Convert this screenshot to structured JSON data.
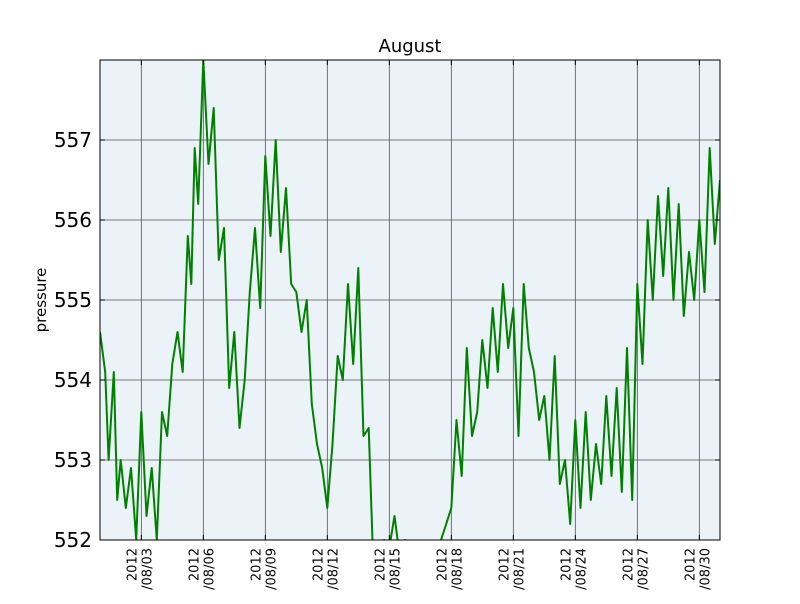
{
  "chart_data": {
    "type": "line",
    "title": "August",
    "xlabel": "",
    "ylabel": "pressure",
    "ylim": [
      552,
      558
    ],
    "xlim": [
      "2012-08-01",
      "2012-08-31"
    ],
    "grid": true,
    "colors": {
      "line": "#008000",
      "plot_bg": "#ebf2f8",
      "grid": "#555555",
      "axes": "#000000"
    },
    "y_ticks": [
      {
        "value": 552,
        "label": "552"
      },
      {
        "value": 553,
        "label": "553"
      },
      {
        "value": 554,
        "label": "554"
      },
      {
        "value": 555,
        "label": "555"
      },
      {
        "value": 556,
        "label": "556"
      },
      {
        "value": 557,
        "label": "557"
      }
    ],
    "x_ticks": [
      {
        "date": "2012-08-03",
        "label1": "2012",
        "label2": "/08/03"
      },
      {
        "date": "2012-08-06",
        "label1": "2012",
        "label2": "/08/06"
      },
      {
        "date": "2012-08-09",
        "label1": "2012",
        "label2": "/08/09"
      },
      {
        "date": "2012-08-12",
        "label1": "2012",
        "label2": "/08/12"
      },
      {
        "date": "2012-08-15",
        "label1": "2012",
        "label2": "/08/15"
      },
      {
        "date": "2012-08-18",
        "label1": "2012",
        "label2": "/08/18"
      },
      {
        "date": "2012-08-21",
        "label1": "2012",
        "label2": "/08/21"
      },
      {
        "date": "2012-08-24",
        "label1": "2012",
        "label2": "/08/24"
      },
      {
        "date": "2012-08-27",
        "label1": "2012",
        "label2": "/08/27"
      },
      {
        "date": "2012-08-30",
        "label1": "2012",
        "label2": "/08/30"
      }
    ],
    "series": [
      {
        "x": [
          "2012-08-01 00:00",
          "2012-08-01 06:00",
          "2012-08-01 10:00",
          "2012-08-01 16:00",
          "2012-08-01 20:00",
          "2012-08-02 00:00",
          "2012-08-02 06:00",
          "2012-08-02 12:00",
          "2012-08-02 18:00",
          "2012-08-03 00:00",
          "2012-08-03 06:00",
          "2012-08-03 12:00",
          "2012-08-03 18:00",
          "2012-08-04 00:00",
          "2012-08-04 06:00",
          "2012-08-04 12:00",
          "2012-08-04 18:00",
          "2012-08-05 00:00",
          "2012-08-05 06:00",
          "2012-08-05 10:00",
          "2012-08-05 14:00",
          "2012-08-05 18:00",
          "2012-08-06 00:00",
          "2012-08-06 06:00",
          "2012-08-06 12:00",
          "2012-08-06 18:00",
          "2012-08-07 00:00",
          "2012-08-07 06:00",
          "2012-08-07 12:00",
          "2012-08-07 18:00",
          "2012-08-08 00:00",
          "2012-08-08 06:00",
          "2012-08-08 12:00",
          "2012-08-08 18:00",
          "2012-08-09 00:00",
          "2012-08-09 06:00",
          "2012-08-09 12:00",
          "2012-08-09 18:00",
          "2012-08-10 00:00",
          "2012-08-10 06:00",
          "2012-08-10 12:00",
          "2012-08-10 18:00",
          "2012-08-11 00:00",
          "2012-08-11 06:00",
          "2012-08-11 12:00",
          "2012-08-11 18:00",
          "2012-08-12 00:00",
          "2012-08-12 06:00",
          "2012-08-12 12:00",
          "2012-08-12 18:00",
          "2012-08-13 00:00",
          "2012-08-13 06:00",
          "2012-08-13 12:00",
          "2012-08-13 18:00",
          "2012-08-14 00:00",
          "2012-08-14 06:00",
          "2012-08-14 12:00",
          "2012-08-14 18:00",
          "2012-08-15 00:00",
          "2012-08-15 06:00",
          "2012-08-15 12:00",
          "2012-08-15 18:00",
          "2012-08-16 00:00",
          "2012-08-16 12:00",
          "2012-08-17 00:00",
          "2012-08-17 12:00",
          "2012-08-17 18:00",
          "2012-08-18 00:00",
          "2012-08-18 06:00",
          "2012-08-18 12:00",
          "2012-08-18 18:00",
          "2012-08-19 00:00",
          "2012-08-19 06:00",
          "2012-08-19 12:00",
          "2012-08-19 18:00",
          "2012-08-20 00:00",
          "2012-08-20 06:00",
          "2012-08-20 12:00",
          "2012-08-20 18:00",
          "2012-08-21 00:00",
          "2012-08-21 06:00",
          "2012-08-21 12:00",
          "2012-08-21 18:00",
          "2012-08-22 00:00",
          "2012-08-22 06:00",
          "2012-08-22 12:00",
          "2012-08-22 18:00",
          "2012-08-23 00:00",
          "2012-08-23 06:00",
          "2012-08-23 12:00",
          "2012-08-23 18:00",
          "2012-08-24 00:00",
          "2012-08-24 06:00",
          "2012-08-24 12:00",
          "2012-08-24 18:00",
          "2012-08-25 00:00",
          "2012-08-25 06:00",
          "2012-08-25 12:00",
          "2012-08-25 18:00",
          "2012-08-26 00:00",
          "2012-08-26 06:00",
          "2012-08-26 12:00",
          "2012-08-26 18:00",
          "2012-08-27 00:00",
          "2012-08-27 06:00",
          "2012-08-27 12:00",
          "2012-08-27 18:00",
          "2012-08-28 00:00",
          "2012-08-28 06:00",
          "2012-08-28 12:00",
          "2012-08-28 18:00",
          "2012-08-29 00:00",
          "2012-08-29 06:00",
          "2012-08-29 12:00",
          "2012-08-29 18:00",
          "2012-08-30 00:00",
          "2012-08-30 06:00",
          "2012-08-30 12:00",
          "2012-08-30 18:00",
          "2012-08-31 00:00"
        ],
        "y": [
          554.6,
          554.1,
          553.0,
          554.1,
          552.5,
          553.0,
          552.4,
          552.9,
          552.0,
          553.6,
          552.3,
          552.9,
          552.0,
          553.6,
          553.3,
          554.2,
          554.6,
          554.1,
          555.8,
          555.2,
          556.9,
          556.2,
          558.0,
          556.7,
          557.4,
          555.5,
          555.9,
          553.9,
          554.6,
          553.4,
          554.0,
          555.1,
          555.9,
          554.9,
          556.8,
          555.8,
          557.0,
          555.6,
          556.4,
          555.2,
          555.1,
          554.6,
          555.0,
          553.7,
          553.2,
          552.9,
          552.4,
          553.2,
          554.3,
          554.0,
          555.2,
          554.2,
          555.4,
          553.3,
          553.4,
          551.5,
          551.8,
          552.0,
          551.9,
          552.3,
          551.8,
          552.0,
          551.8,
          551.9,
          551.8,
          552.0,
          552.2,
          552.4,
          553.5,
          552.8,
          554.4,
          553.3,
          553.6,
          554.5,
          553.9,
          554.9,
          554.1,
          555.2,
          554.4,
          554.9,
          553.3,
          555.2,
          554.4,
          554.1,
          553.5,
          553.8,
          553.0,
          554.3,
          552.7,
          553.0,
          552.2,
          553.5,
          552.4,
          553.6,
          552.5,
          553.2,
          552.7,
          553.8,
          552.8,
          553.9,
          552.6,
          554.4,
          552.5,
          555.2,
          554.2,
          556.0,
          555.0,
          556.3,
          555.3,
          556.4,
          555.0,
          556.2,
          554.8,
          555.6,
          555.0,
          556.0,
          555.1,
          556.9,
          555.7,
          556.5
        ]
      }
    ]
  }
}
